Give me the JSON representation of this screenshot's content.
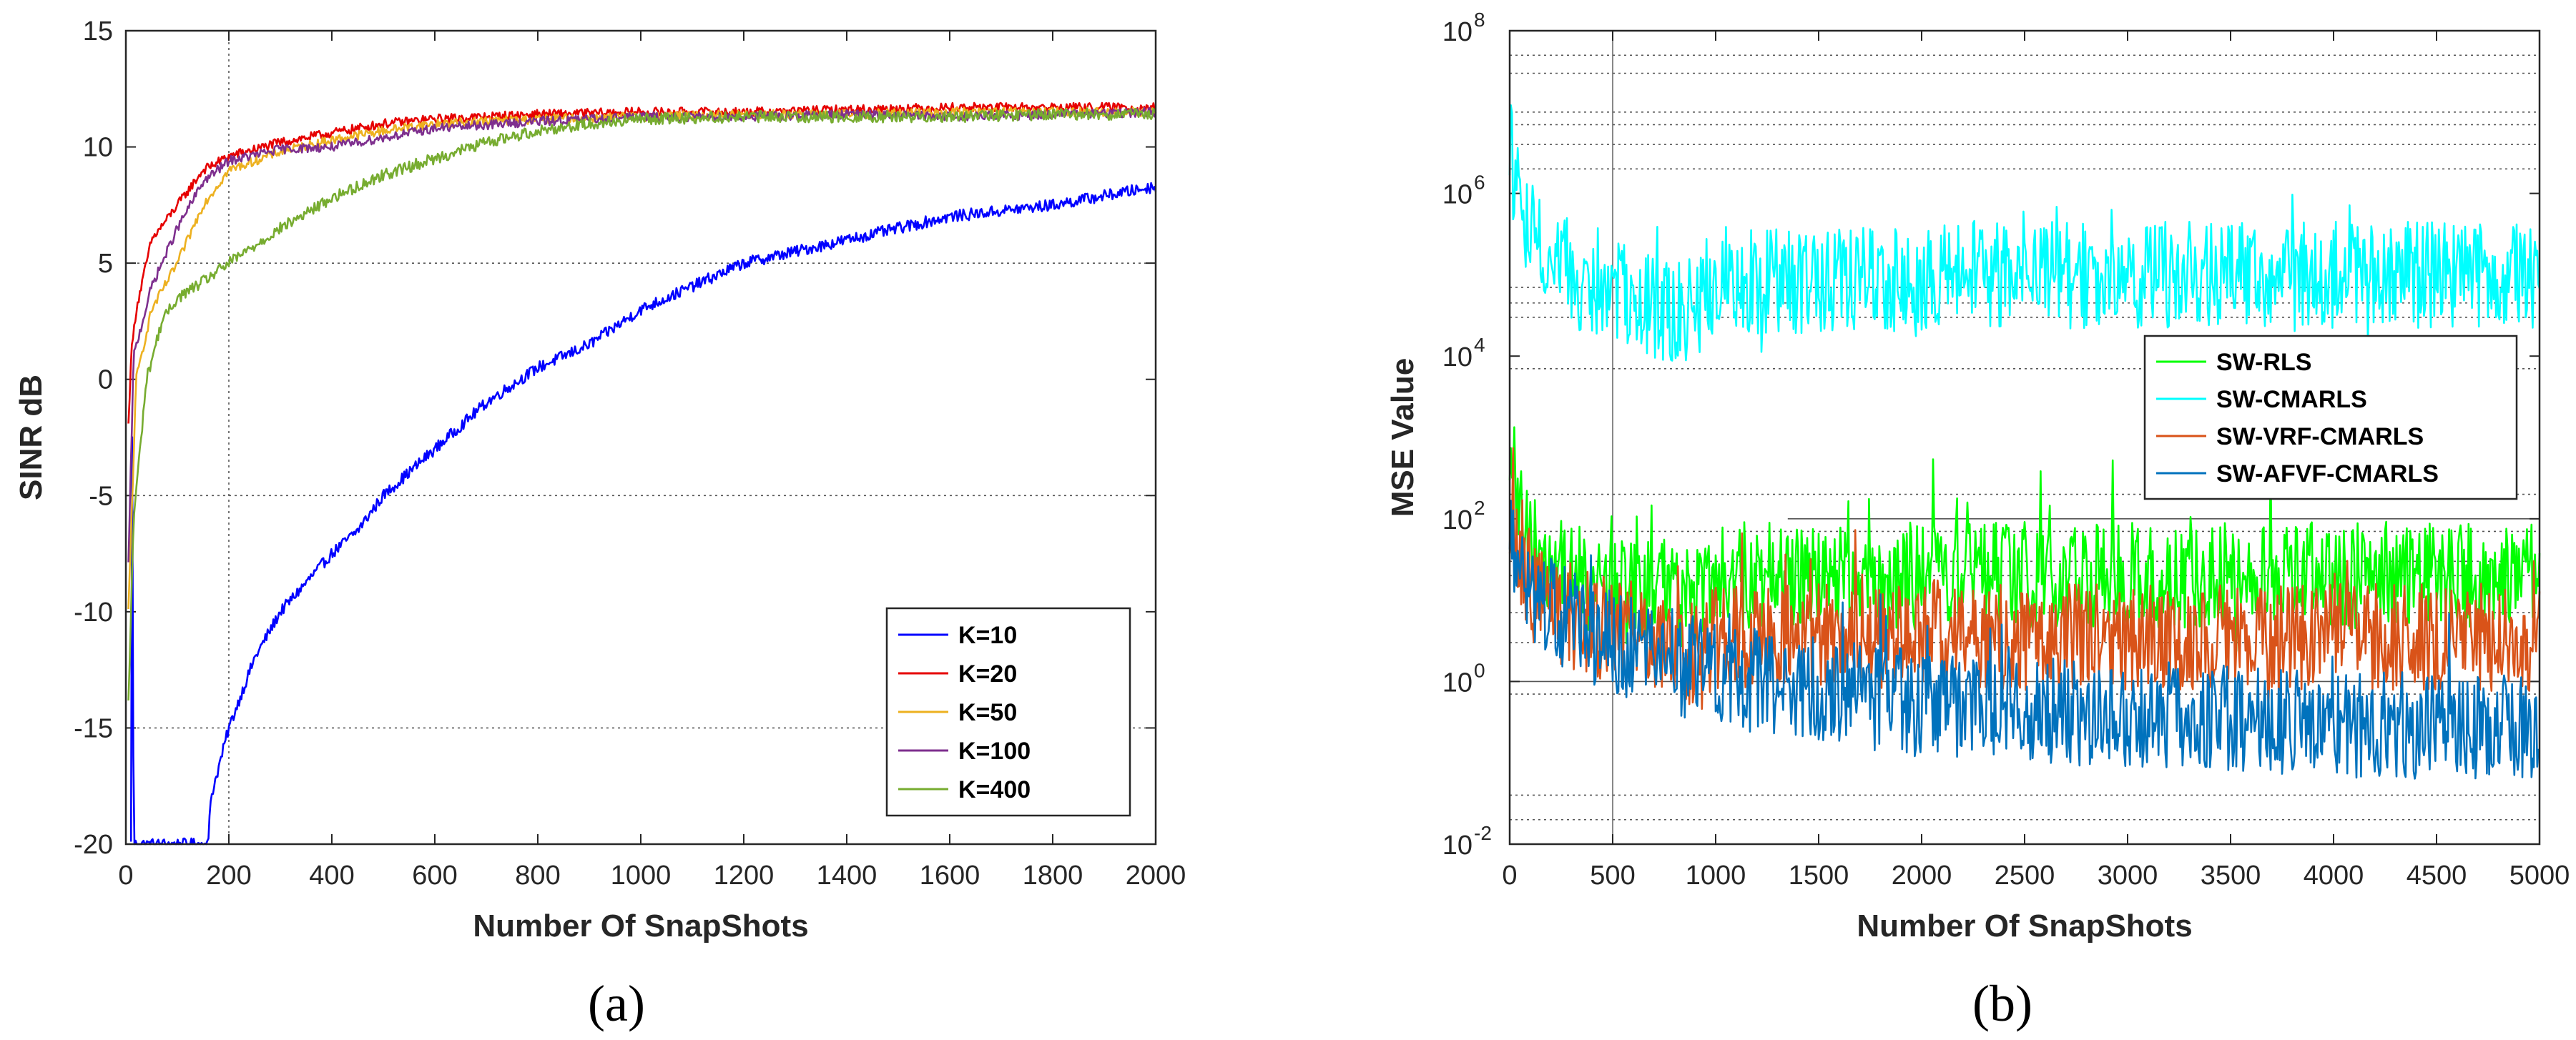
{
  "chart_data": [
    {
      "type": "line",
      "panel_label": "(a)",
      "xlabel": "Number Of SnapShots",
      "ylabel": "SINR dB",
      "xlim": [
        0,
        2000
      ],
      "ylim": [
        -20,
        15
      ],
      "xticks": [
        0,
        200,
        400,
        600,
        800,
        1000,
        1200,
        1400,
        1600,
        1800,
        2000
      ],
      "yticks": [
        -20,
        -15,
        -10,
        -5,
        0,
        5,
        10,
        15
      ],
      "grid": "sparse dotted",
      "legend_location": "lower-right",
      "series": [
        {
          "name": "K=10",
          "color": "#0000ff",
          "x": [
            10,
            12,
            15,
            160,
            165,
            200,
            250,
            300,
            400,
            450,
            500,
            600,
            700,
            800,
            900,
            1000,
            1100,
            1200,
            1300,
            1400,
            1600,
            1800,
            2000
          ],
          "y": [
            -20,
            -1,
            -20,
            -20,
            -18,
            -15,
            -12,
            -10,
            -7.5,
            -6.5,
            -5,
            -3,
            -1,
            0.5,
            1.5,
            3,
            4,
            5,
            5.5,
            6,
            7,
            7.5,
            8.3
          ],
          "noise": 0.25
        },
        {
          "name": "K=20",
          "color": "#e60000",
          "x": [
            5,
            10,
            20,
            50,
            100,
            150,
            200,
            300,
            400,
            500,
            600,
            800,
            1000,
            1200,
            1400,
            1600,
            1800,
            2000
          ],
          "y": [
            -2,
            1,
            3,
            6,
            7.5,
            9,
            9.6,
            10.2,
            10.6,
            11,
            11.2,
            11.4,
            11.5,
            11.5,
            11.6,
            11.7,
            11.7,
            11.7
          ],
          "noise": 0.2
        },
        {
          "name": "K=50",
          "color": "#edb120",
          "x": [
            5,
            20,
            50,
            100,
            150,
            200,
            300,
            400,
            500,
            600,
            800,
            1000,
            1200,
            1400,
            1600,
            1800,
            2000
          ],
          "y": [
            -10,
            0,
            3,
            5,
            7.5,
            9,
            9.8,
            10.3,
            10.7,
            11,
            11.2,
            11.3,
            11.4,
            11.4,
            11.5,
            11.5,
            11.5
          ],
          "noise": 0.2
        },
        {
          "name": "K=100",
          "color": "#7e2f8e",
          "x": [
            5,
            15,
            50,
            100,
            150,
            200,
            300,
            400,
            500,
            600,
            800,
            1000,
            1200,
            1400,
            1600,
            1800,
            2000
          ],
          "y": [
            -8,
            1,
            4,
            6.5,
            8.5,
            9.4,
            9.9,
            10,
            10.4,
            10.8,
            11.1,
            11.3,
            11.3,
            11.4,
            11.3,
            11.4,
            11.5
          ],
          "noise": 0.2
        },
        {
          "name": "K=400",
          "color": "#77ac30",
          "x": [
            5,
            15,
            40,
            70,
            100,
            150,
            200,
            300,
            400,
            500,
            600,
            700,
            800,
            900,
            1000,
            1200,
            1400,
            1600,
            1800,
            2000
          ],
          "y": [
            -14,
            -6,
            0,
            2.5,
            3.5,
            4.2,
            5,
            6.5,
            7.8,
            8.8,
            9.5,
            10.2,
            10.7,
            11,
            11.2,
            11.3,
            11.3,
            11.3,
            11.4,
            11.4
          ],
          "noise": 0.25
        }
      ]
    },
    {
      "type": "line",
      "panel_label": "(b)",
      "xlabel": "Number Of SnapShots",
      "ylabel": "MSE Value",
      "xlim": [
        0,
        5000
      ],
      "ylim": [
        0.01,
        100000000
      ],
      "yscale": "log",
      "xticks": [
        0,
        500,
        1000,
        1500,
        2000,
        2500,
        3000,
        3500,
        4000,
        4500,
        5000
      ],
      "yticks": [
        {
          "value": 0.01,
          "base": "10",
          "exp": "-2"
        },
        {
          "value": 1,
          "base": "10",
          "exp": "0"
        },
        {
          "value": 100,
          "base": "10",
          "exp": "2"
        },
        {
          "value": 10000,
          "base": "10",
          "exp": "4"
        },
        {
          "value": 1000000,
          "base": "10",
          "exp": "6"
        },
        {
          "value": 100000000,
          "base": "10",
          "exp": "8"
        }
      ],
      "grid": "sparse dotted",
      "legend_location": "middle-right",
      "series": [
        {
          "name": "SW-RLS",
          "color": "#00ff00",
          "x": [
            0,
            30,
            100,
            200,
            400,
            700,
            950,
            1000,
            1100,
            1500,
            2000,
            2050,
            2500,
            3000,
            3500,
            4000,
            4500,
            5000
          ],
          "y": [
            1000,
            150,
            50,
            25,
            15,
            12,
            12,
            25,
            20,
            20,
            20,
            22,
            20,
            20,
            20,
            20,
            20,
            20
          ],
          "noise": 0.3
        },
        {
          "name": "SW-CMARLS",
          "color": "#00ffff",
          "x": [
            0,
            20,
            100,
            200,
            400,
            700,
            950,
            1000,
            1100,
            1500,
            2000,
            2050,
            2500,
            3000,
            3500,
            4000,
            4500,
            5000
          ],
          "y": [
            5000000,
            1000000,
            300000,
            150000,
            70000,
            40000,
            40000,
            100000,
            80000,
            80000,
            80000,
            110000,
            100000,
            100000,
            100000,
            100000,
            100000,
            100000
          ],
          "noise": 0.3
        },
        {
          "name": "SW-VRF-CMARLS",
          "color": "#d95319",
          "x": [
            0,
            30,
            100,
            200,
            400,
            700,
            950,
            1000,
            1500,
            2000,
            2050,
            2500,
            3000,
            3500,
            4000,
            4500,
            5000
          ],
          "y": [
            100,
            40,
            15,
            8,
            5,
            3,
            2,
            3.5,
            3.5,
            3.5,
            4,
            3.5,
            3.5,
            3.5,
            3.5,
            3.5,
            3.5
          ],
          "noise": 0.3
        },
        {
          "name": "SW-AFVF-CMARLS",
          "color": "#0072bd",
          "x": [
            0,
            30,
            100,
            200,
            400,
            700,
            1000,
            1500,
            2000,
            2500,
            3000,
            3500,
            4000,
            4500,
            5000
          ],
          "y": [
            100,
            40,
            15,
            8,
            4,
            2,
            1.2,
            0.8,
            0.5,
            0.45,
            0.4,
            0.35,
            0.3,
            0.28,
            0.25
          ],
          "noise": 0.3
        }
      ]
    }
  ]
}
